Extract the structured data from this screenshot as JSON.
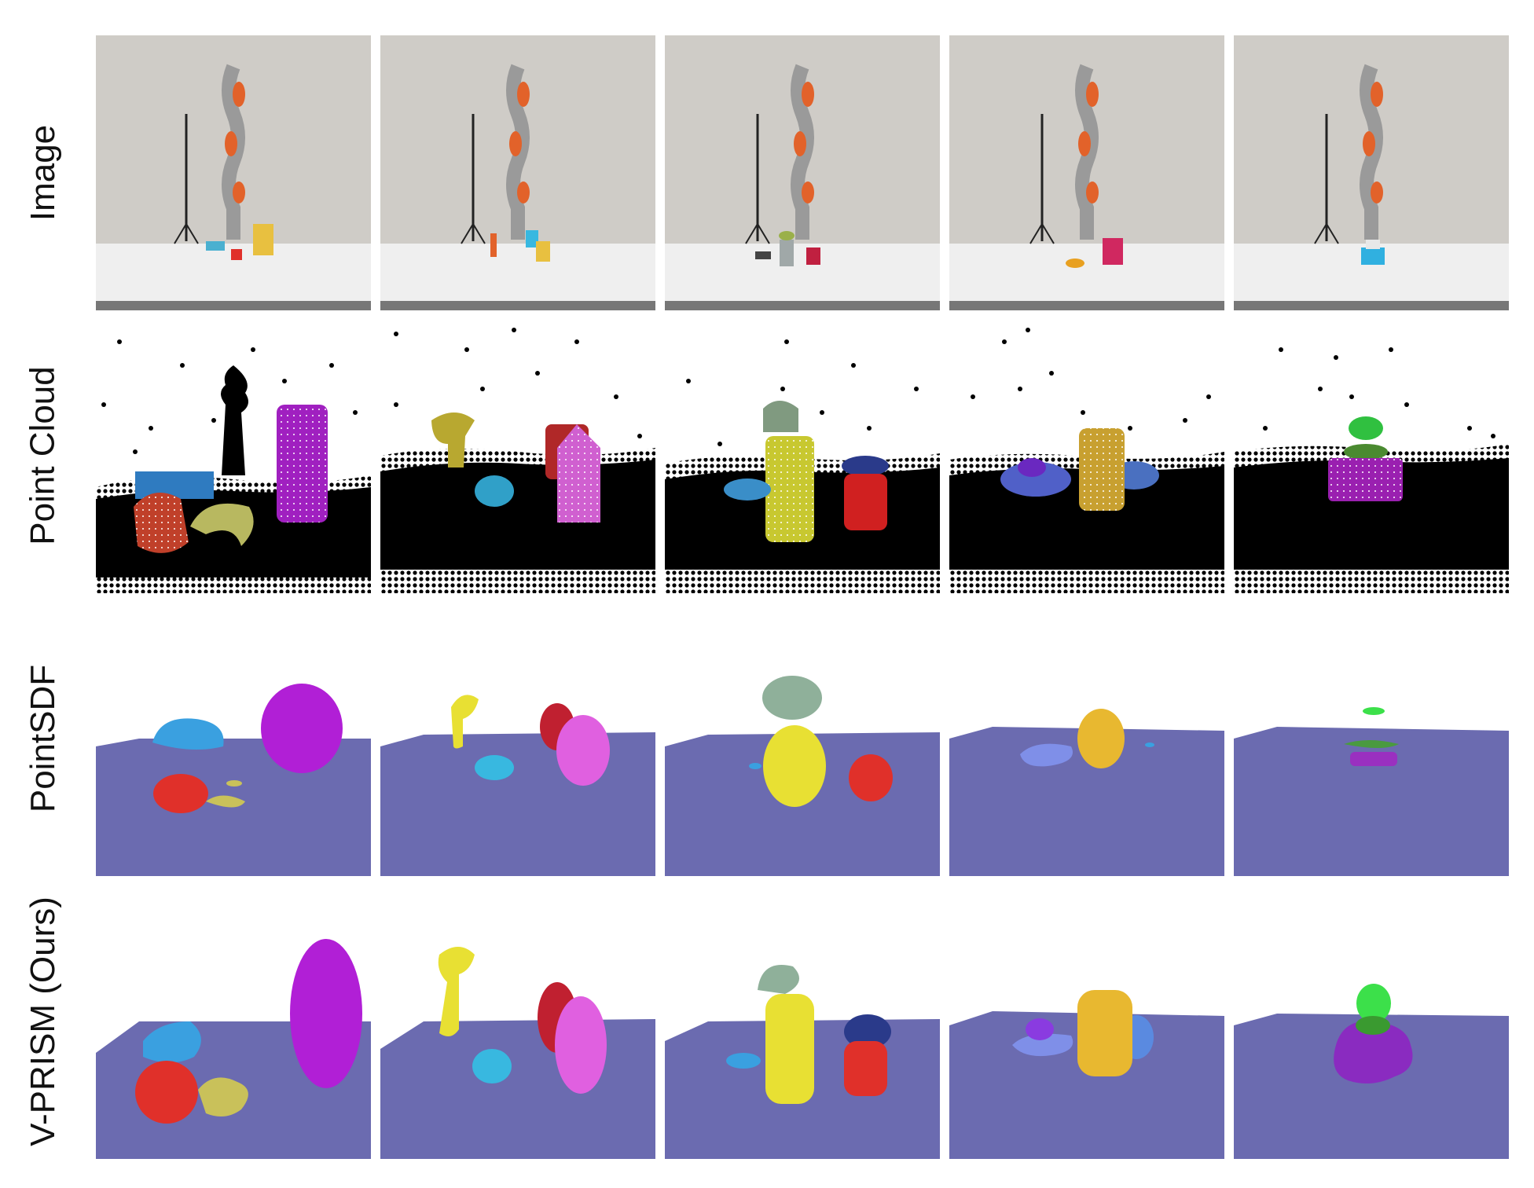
{
  "figure": {
    "rows": [
      {
        "id": "image",
        "label": "Image"
      },
      {
        "id": "pointcloud",
        "label": "Point Cloud"
      },
      {
        "id": "pointsdf",
        "label": "PointSDF"
      },
      {
        "id": "vprism",
        "label": "V-PRISM (Ours)"
      }
    ],
    "columns": 5,
    "colors": {
      "wall": "#cfccc7",
      "table": "#eeeeee",
      "plane": "#6b6bb0",
      "robot_gray": "#9a9a9a",
      "robot_orange": "#e2622a",
      "purple": "#b11fd6",
      "magenta": "#e060e0",
      "red": "#e0302a",
      "yellow": "#e8e033",
      "olive": "#c9c15a",
      "blue": "#3aa0e0",
      "cyan": "#38b8e0",
      "sage": "#8fb09a",
      "gold": "#e8b830",
      "periwinkle": "#7f8fe8",
      "violet": "#8a3be0",
      "green": "#3ce04a"
    }
  }
}
